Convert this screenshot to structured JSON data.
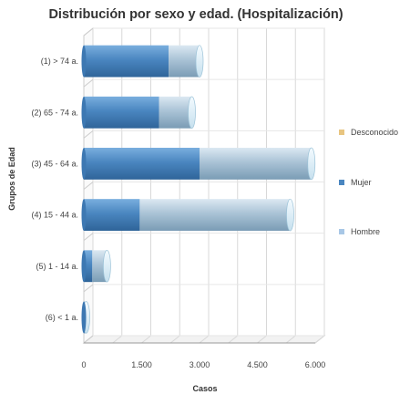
{
  "chart_data": {
    "type": "bar",
    "orientation": "horizontal",
    "stacked": true,
    "title": "Distribución por sexo y edad. (Hospitalización)",
    "xlabel": "Casos",
    "ylabel": "Grupos de Edad",
    "categories": [
      "(1) > 74 a.",
      "(2) 65 - 74 a.",
      "(3) 45 - 64 a.",
      "(4) 15 - 44 a.",
      "(5) 1 - 14 a.",
      "(6) < 1 a."
    ],
    "series": [
      {
        "name": "Mujer",
        "color": "#4a86c0",
        "values": [
          2200,
          1950,
          3000,
          1450,
          220,
          20
        ]
      },
      {
        "name": "Hombre",
        "color": "#a8c7e6",
        "values": [
          800,
          850,
          2900,
          3900,
          380,
          40
        ]
      },
      {
        "name": "Desconocido",
        "color": "#e8c580",
        "values": [
          0,
          0,
          0,
          0,
          0,
          0
        ]
      }
    ],
    "legend_order": [
      "Desconocido",
      "Mujer",
      "Hombre"
    ],
    "xlim": [
      0,
      6000
    ],
    "xticks": [
      0,
      1500,
      3000,
      4500,
      6000
    ],
    "xtick_labels": [
      "0",
      "1.500",
      "3.000",
      "4.500",
      "6.000"
    ],
    "grid": true,
    "legend_position": "right"
  }
}
